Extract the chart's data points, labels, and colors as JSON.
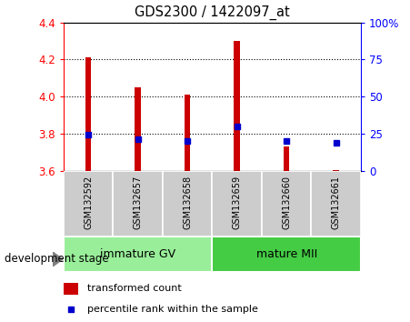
{
  "title": "GDS2300 / 1422097_at",
  "samples": [
    "GSM132592",
    "GSM132657",
    "GSM132658",
    "GSM132659",
    "GSM132660",
    "GSM132661"
  ],
  "bar_bottom": 3.6,
  "bar_tops": [
    4.21,
    4.05,
    4.01,
    4.3,
    3.73,
    3.605
  ],
  "percentile_values": [
    3.795,
    3.772,
    3.762,
    3.838,
    3.762,
    3.752
  ],
  "ylim": [
    3.6,
    4.4
  ],
  "right_ylim": [
    0,
    100
  ],
  "right_yticks": [
    0,
    25,
    50,
    75,
    100
  ],
  "right_yticklabels": [
    "0",
    "25",
    "50",
    "75",
    "100%"
  ],
  "left_yticks": [
    3.6,
    3.8,
    4.0,
    4.2,
    4.4
  ],
  "bar_color": "#cc0000",
  "dot_color": "#0000cc",
  "group1_label": "immature GV",
  "group2_label": "mature MII",
  "group_bg1": "#99ee99",
  "group_bg2": "#44cc44",
  "sample_bg": "#cccccc",
  "xlabel": "development stage",
  "legend1": "transformed count",
  "legend2": "percentile rank within the sample",
  "bar_width": 0.12
}
